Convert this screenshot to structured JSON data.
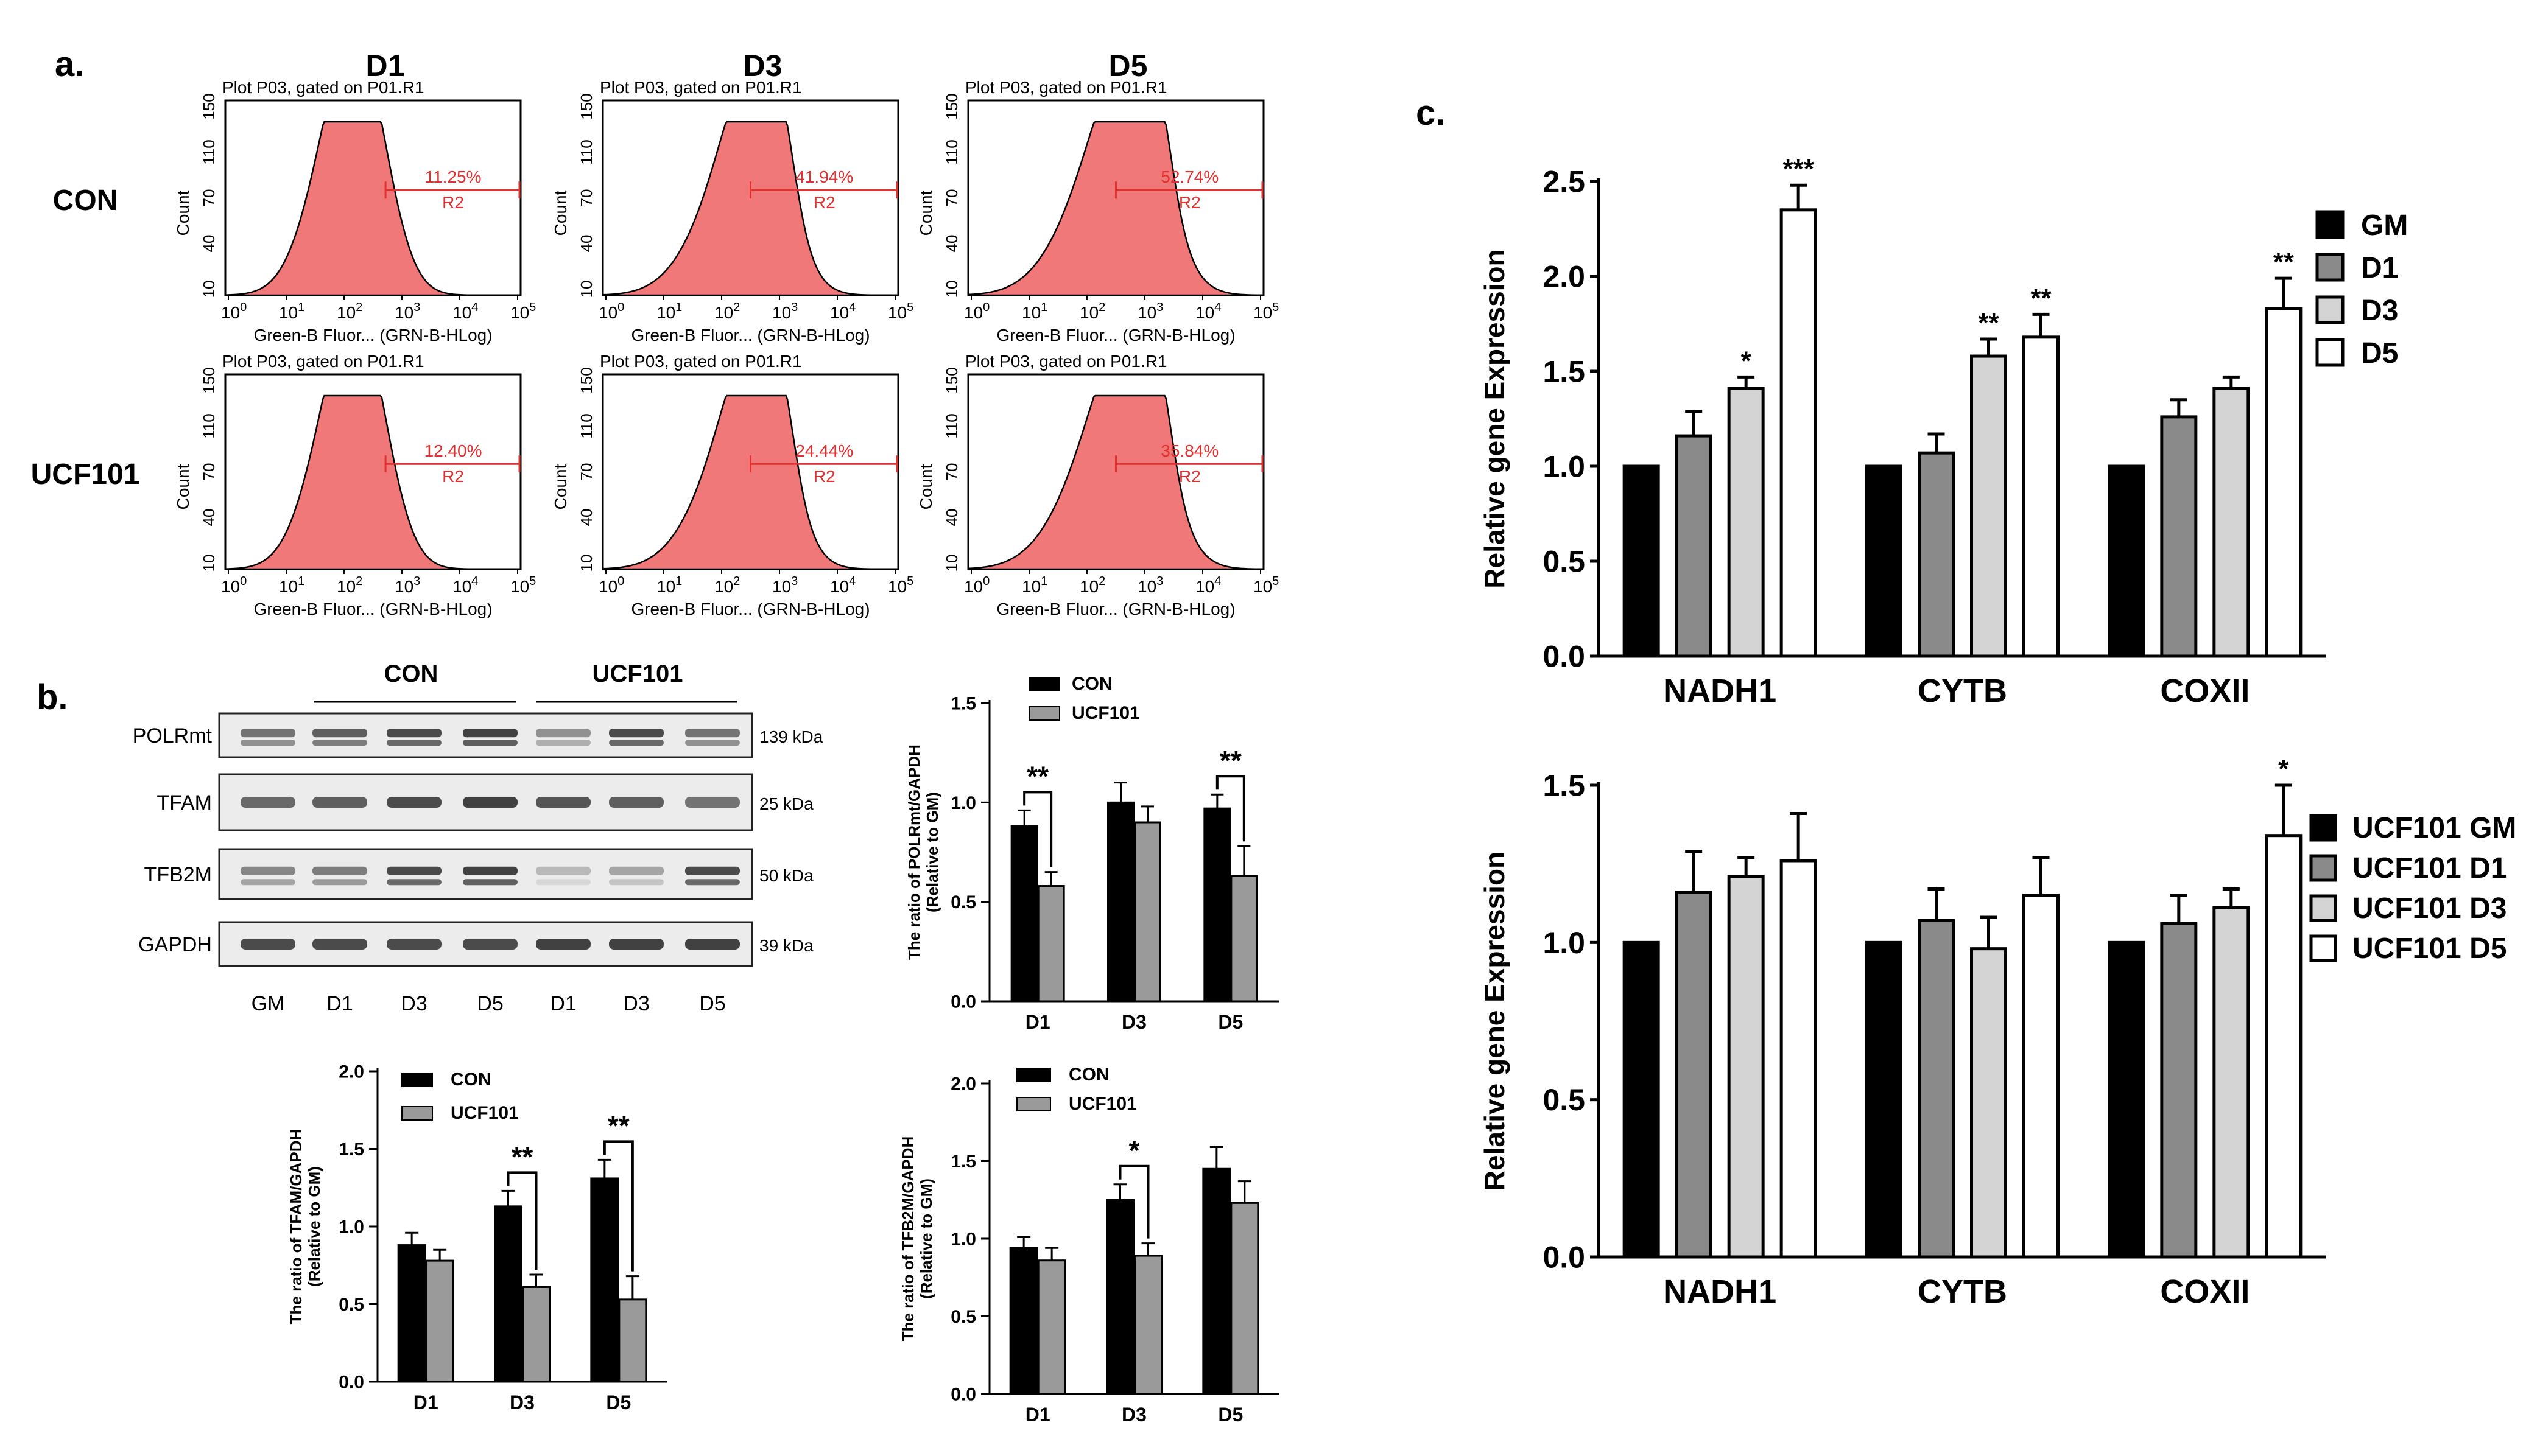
{
  "panel_labels": {
    "a": "a.",
    "b": "b.",
    "c": "c."
  },
  "flow": {
    "columns": [
      "D1",
      "D3",
      "D5"
    ],
    "rows": [
      "CON",
      "UCF101"
    ],
    "plot_title": "Plot P03, gated on P01.R1",
    "ylabel": "Count",
    "yticks": [
      "10",
      "40",
      "70",
      "110",
      "150"
    ],
    "xlabel": "Green-B Fluor... (GRN-B-HLog)",
    "xticks": [
      "0",
      "1",
      "2",
      "3",
      "4",
      "5"
    ],
    "region": "R2",
    "percents": [
      [
        "11.25%",
        "41.94%",
        "52.74%"
      ],
      [
        "12.40%",
        "24.44%",
        "35.84%"
      ]
    ],
    "fill_color": "#f07878",
    "marker_color": "#e03030"
  },
  "blot": {
    "group_labels": [
      "CON",
      "UCF101"
    ],
    "proteins": [
      "POLRmt",
      "TFAM",
      "TFB2M",
      "GAPDH"
    ],
    "sizes": [
      "139 kDa",
      "25 kDa",
      "50 kDa",
      "39 kDa"
    ],
    "lanes": [
      "GM",
      "D1",
      "D3",
      "D5",
      "D1",
      "D3",
      "D5"
    ]
  },
  "chart_data": [
    {
      "id": "b-polrmt",
      "type": "bar",
      "categories": [
        "D1",
        "D3",
        "D5"
      ],
      "series": [
        {
          "name": "CON",
          "values": [
            0.88,
            1.0,
            0.97
          ],
          "errors": [
            0.08,
            0.1,
            0.07
          ]
        },
        {
          "name": "UCF101",
          "values": [
            0.58,
            0.9,
            0.63
          ],
          "errors": [
            0.07,
            0.08,
            0.15
          ]
        }
      ],
      "ylabel": [
        "The ratio of POLRmt/GAPDH",
        "(Relative to GM)"
      ],
      "ylim": [
        0,
        1.5
      ],
      "yticks": [
        "0.0",
        "0.5",
        "1.0",
        "1.5"
      ],
      "ytick_values": [
        0,
        0.5,
        1.0,
        1.5
      ],
      "significance": [
        {
          "index": 0,
          "label": "**"
        },
        {
          "index": 2,
          "label": "**"
        }
      ],
      "legend": "top-left"
    },
    {
      "id": "b-tfam",
      "type": "bar",
      "categories": [
        "D1",
        "D3",
        "D5"
      ],
      "series": [
        {
          "name": "CON",
          "values": [
            0.88,
            1.13,
            1.31
          ],
          "errors": [
            0.08,
            0.1,
            0.12
          ]
        },
        {
          "name": "UCF101",
          "values": [
            0.78,
            0.61,
            0.53
          ],
          "errors": [
            0.07,
            0.08,
            0.15
          ]
        }
      ],
      "ylabel": [
        "The ratio of TFAM/GAPDH",
        "(Relative to GM)"
      ],
      "ylim": [
        0,
        2.0
      ],
      "yticks": [
        "0.0",
        "0.5",
        "1.0",
        "1.5",
        "2.0"
      ],
      "ytick_values": [
        0,
        0.5,
        1.0,
        1.5,
        2.0
      ],
      "significance": [
        {
          "index": 1,
          "label": "**"
        },
        {
          "index": 2,
          "label": "**"
        }
      ],
      "legend": "top-left"
    },
    {
      "id": "b-tfb2m",
      "type": "bar",
      "categories": [
        "D1",
        "D3",
        "D5"
      ],
      "series": [
        {
          "name": "CON",
          "values": [
            0.94,
            1.25,
            1.45
          ],
          "errors": [
            0.07,
            0.1,
            0.14
          ]
        },
        {
          "name": "UCF101",
          "values": [
            0.86,
            0.89,
            1.23
          ],
          "errors": [
            0.08,
            0.08,
            0.14
          ]
        }
      ],
      "ylabel": [
        "The ratio of TFB2M/GAPDH",
        "(Relative to GM)"
      ],
      "ylim": [
        0,
        2.0
      ],
      "yticks": [
        "0.0",
        "0.5",
        "1.0",
        "1.5",
        "2.0"
      ],
      "ytick_values": [
        0,
        0.5,
        1.0,
        1.5,
        2.0
      ],
      "significance": [
        {
          "index": 1,
          "label": "*"
        }
      ],
      "legend": "top-left"
    },
    {
      "id": "c-con",
      "type": "bar",
      "categories": [
        "NADH1",
        "CYTB",
        "COXII"
      ],
      "series": [
        {
          "name": "GM",
          "values": [
            1.0,
            1.0,
            1.0
          ],
          "errors": [
            0,
            0,
            0
          ]
        },
        {
          "name": "D1",
          "values": [
            1.16,
            1.07,
            1.26
          ],
          "errors": [
            0.13,
            0.1,
            0.09
          ]
        },
        {
          "name": "D3",
          "values": [
            1.41,
            1.58,
            1.41
          ],
          "errors": [
            0.06,
            0.09,
            0.06
          ]
        },
        {
          "name": "D5",
          "values": [
            2.35,
            1.68,
            1.83
          ],
          "errors": [
            0.13,
            0.12,
            0.16
          ]
        }
      ],
      "annotations": [
        {
          "cat": 0,
          "series": 2,
          "label": "*"
        },
        {
          "cat": 0,
          "series": 3,
          "label": "***"
        },
        {
          "cat": 1,
          "series": 2,
          "label": "**"
        },
        {
          "cat": 1,
          "series": 3,
          "label": "**"
        },
        {
          "cat": 2,
          "series": 3,
          "label": "**"
        }
      ],
      "ylabel": "Relative gene Expression",
      "ylim": [
        0,
        2.5
      ],
      "yticks": [
        "0.0",
        "0.5",
        "1.0",
        "1.5",
        "2.0",
        "2.5"
      ],
      "ytick_values": [
        0,
        0.5,
        1.0,
        1.5,
        2.0,
        2.5
      ],
      "legend": "right"
    },
    {
      "id": "c-ucf",
      "type": "bar",
      "categories": [
        "NADH1",
        "CYTB",
        "COXII"
      ],
      "series": [
        {
          "name": "UCF101 GM",
          "values": [
            1.0,
            1.0,
            1.0
          ],
          "errors": [
            0,
            0,
            0
          ]
        },
        {
          "name": "UCF101 D1",
          "values": [
            1.16,
            1.07,
            1.06
          ],
          "errors": [
            0.13,
            0.1,
            0.09
          ]
        },
        {
          "name": "UCF101 D3",
          "values": [
            1.21,
            0.98,
            1.11
          ],
          "errors": [
            0.06,
            0.1,
            0.06
          ]
        },
        {
          "name": "UCF101 D5",
          "values": [
            1.26,
            1.15,
            1.34
          ],
          "errors": [
            0.15,
            0.12,
            0.16
          ]
        }
      ],
      "annotations": [
        {
          "cat": 2,
          "series": 3,
          "label": "*"
        }
      ],
      "ylabel": "Relative gene Expression",
      "ylim": [
        0,
        1.5
      ],
      "yticks": [
        "0.0",
        "0.5",
        "1.0",
        "1.5"
      ],
      "ytick_values": [
        0,
        0.5,
        1.0,
        1.5
      ],
      "legend": "right"
    }
  ],
  "colors": {
    "black": "#000000",
    "dark_gray": "#808080",
    "mid_gray": "#9a9a9a",
    "light_gray": "#d6d6d6",
    "white": "#ffffff"
  }
}
